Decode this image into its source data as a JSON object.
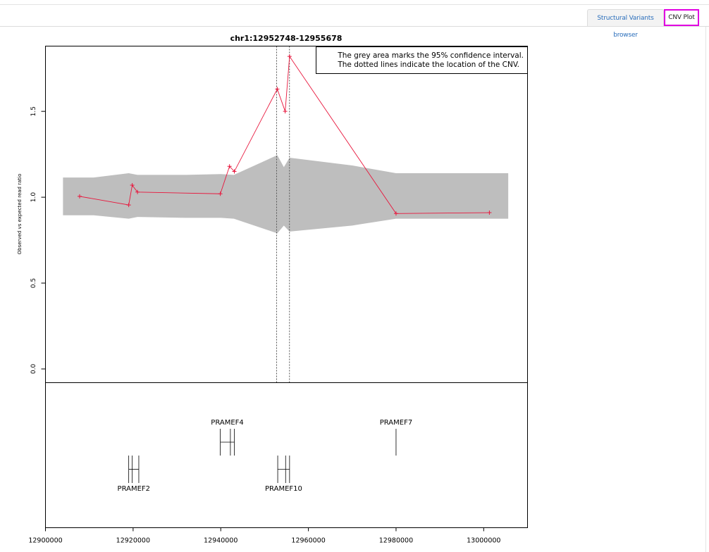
{
  "tabs": [
    {
      "label": "Structural Variants browser",
      "active": false
    },
    {
      "label": "CNV Plot",
      "active": true
    }
  ],
  "chart_data": {
    "type": "line",
    "title": "chr1:12952748-12955678",
    "ylabel": "Observed vs expected read ratio",
    "xlabel": "",
    "xlim": [
      12900000,
      13010000
    ],
    "ylim": [
      -0.08,
      1.88
    ],
    "x_ticks": [
      12900000,
      12920000,
      12940000,
      12960000,
      12980000,
      13000000
    ],
    "x_tick_labels": [
      "12900000",
      "12920000",
      "12940000",
      "12960000",
      "12980000",
      "13000000"
    ],
    "y_ticks": [
      0.0,
      0.5,
      1.0,
      1.5
    ],
    "y_tick_labels": [
      "0.0",
      "0.5",
      "1.0",
      "1.5"
    ],
    "legend_lines": [
      "The grey area marks the 95% confidence interval.",
      "The dotted lines indicate the location of the CNV."
    ],
    "legend_position": "top-right",
    "series": [
      {
        "color": "#e8163c",
        "points": [
          [
            12907800,
            1.005
          ],
          [
            12919000,
            0.955
          ],
          [
            12919800,
            1.07
          ],
          [
            12921000,
            1.03
          ],
          [
            12939900,
            1.02
          ],
          [
            12942000,
            1.18
          ],
          [
            12943100,
            1.15
          ],
          [
            12952900,
            1.63
          ],
          [
            12954700,
            1.5
          ],
          [
            12955700,
            1.82
          ],
          [
            12980000,
            0.905
          ],
          [
            13001300,
            0.91
          ]
        ]
      }
    ],
    "confidence_band": {
      "color": "#bebebe",
      "upper": [
        [
          12904000,
          1.115
        ],
        [
          12911000,
          1.115
        ],
        [
          12919000,
          1.14
        ],
        [
          12921000,
          1.13
        ],
        [
          12932000,
          1.13
        ],
        [
          12940000,
          1.135
        ],
        [
          12943000,
          1.13
        ],
        [
          12952900,
          1.245
        ],
        [
          12954400,
          1.175
        ],
        [
          12955700,
          1.23
        ],
        [
          12970000,
          1.185
        ],
        [
          12980000,
          1.14
        ],
        [
          12995000,
          1.14
        ],
        [
          13005600,
          1.14
        ]
      ],
      "lower": [
        [
          12904000,
          0.895
        ],
        [
          12911000,
          0.895
        ],
        [
          12919000,
          0.875
        ],
        [
          12921000,
          0.885
        ],
        [
          12932000,
          0.88
        ],
        [
          12940000,
          0.88
        ],
        [
          12943000,
          0.875
        ],
        [
          12952900,
          0.79
        ],
        [
          12954400,
          0.835
        ],
        [
          12955700,
          0.8
        ],
        [
          12970000,
          0.835
        ],
        [
          12980000,
          0.875
        ],
        [
          12995000,
          0.875
        ],
        [
          13005600,
          0.875
        ]
      ]
    },
    "cnv_bounds": [
      12952748,
      12955678
    ],
    "genes": [
      {
        "name": "PRAMEF2",
        "label_side": "below",
        "row": "low",
        "exons": [
          12919000,
          12919800,
          12921300
        ],
        "span": [
          12919000,
          12921300
        ]
      },
      {
        "name": "PRAMEF4",
        "label_side": "above",
        "row": "high",
        "exons": [
          12939900,
          12942200,
          12943100
        ],
        "span": [
          12939900,
          12943100
        ]
      },
      {
        "name": "PRAMEF10",
        "label_side": "below",
        "row": "low",
        "exons": [
          12953000,
          12954800,
          12955700
        ],
        "span": [
          12953000,
          12955700
        ]
      },
      {
        "name": "PRAMEF7",
        "label_side": "above",
        "row": "high",
        "exons": [
          12980000
        ],
        "span": [
          12980000,
          12980000
        ]
      }
    ]
  }
}
